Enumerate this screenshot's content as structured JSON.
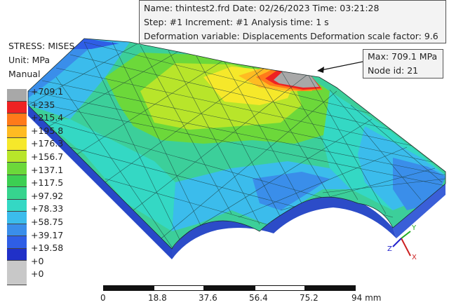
{
  "info": {
    "line1": "Name: thintest2.frd   Date: 02/26/2023   Time: 03:21:28",
    "line2": "Step: #1   Increment: #1   Analysis time: 1 s",
    "line3": "Deformation variable: Displacements   Deformation scale factor: 9.6"
  },
  "maxbox": {
    "line1": "Max: 709.1 MPa",
    "line2": "Node id: 21"
  },
  "legend": {
    "title": "STRESS: MISES",
    "unit": "Unit: MPa",
    "mode": "Manual",
    "labels": [
      "+709.1",
      "+235",
      "+215.4",
      "+195.8",
      "+176.3",
      "+156.7",
      "+137.1",
      "+117.5",
      "+97.92",
      "+78.33",
      "+58.75",
      "+39.17",
      "+19.58",
      "+0",
      "+0"
    ],
    "colors": [
      "#a8a8a8",
      "#ee2222",
      "#ff7a1a",
      "#ffbb22",
      "#f6e82a",
      "#b8e52a",
      "#6cd83a",
      "#3ccf52",
      "#36d48e",
      "#34d8c4",
      "#3bbcec",
      "#3a8eea",
      "#2f5ee6",
      "#2030c8",
      "#c8c8c8"
    ]
  },
  "scale": {
    "ticks": [
      "0",
      "18.8",
      "37.6",
      "56.4",
      "75.2",
      "94 mm"
    ]
  },
  "axes": {
    "x": "X",
    "y": "Y",
    "z": "Z"
  },
  "colors": {
    "background": "#ffffff",
    "mesh_line": "#1a3a3a"
  }
}
